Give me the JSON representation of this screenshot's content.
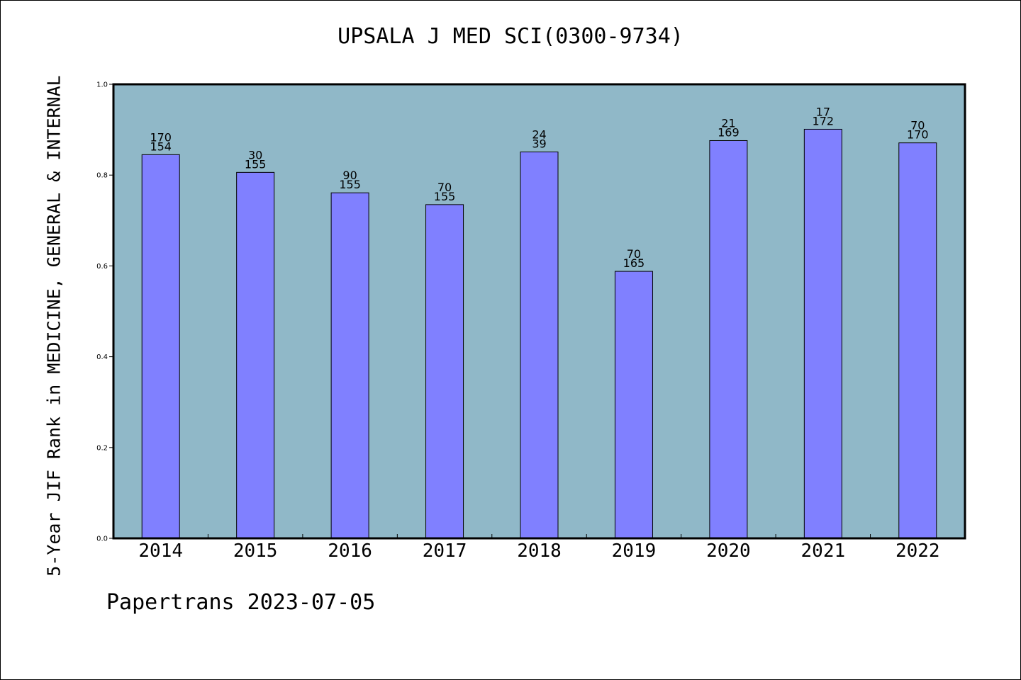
{
  "chart_data": {
    "type": "bar",
    "title": "UPSALA J MED SCI(0300-9734)",
    "ylabel": "5-Year JIF Rank in MEDICINE, GENERAL & INTERNAL",
    "xlabel": "",
    "categories": [
      "2014",
      "2015",
      "2016",
      "2017",
      "2018",
      "2019",
      "2020",
      "2021",
      "2022"
    ],
    "values": [
      0.845,
      0.806,
      0.761,
      0.735,
      0.851,
      0.588,
      0.876,
      0.901,
      0.871
    ],
    "labels_top": [
      "170",
      "30",
      "90",
      "70",
      "24",
      "70",
      "21",
      "17",
      "70"
    ],
    "labels_bottom": [
      "154",
      "155",
      "155",
      "155",
      "39",
      "165",
      "169",
      "172",
      "170"
    ],
    "ylim": [
      0,
      1.0
    ],
    "yticks": [
      "0.0",
      "0.2",
      "0.4",
      "0.6",
      "0.8",
      "1.0"
    ],
    "grid": false,
    "colors": {
      "bar": "#8080ff",
      "plot_background": "#90b8c8",
      "frame": "#000000"
    }
  },
  "footer": "Papertrans 2023-07-05"
}
